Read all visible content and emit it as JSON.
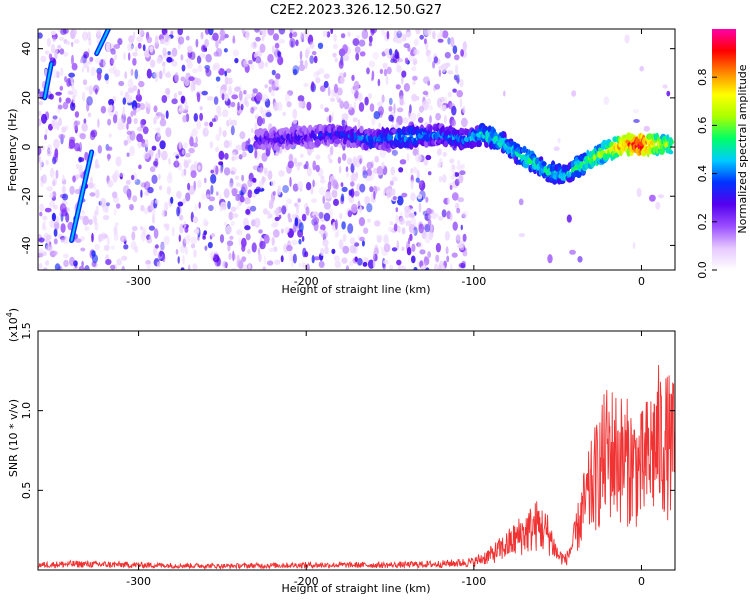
{
  "title": "C2E2.2023.326.12.50.G27",
  "chart_data": [
    {
      "type": "heatmap",
      "title": "C2E2.2023.326.12.50.G27",
      "xlabel": "Height of straight line (km)",
      "ylabel": "Frequency (Hz)",
      "xlim": [
        -360,
        20
      ],
      "ylim": [
        -50,
        48
      ],
      "x_ticks": [
        {
          "value": -300,
          "label": "-300"
        },
        {
          "value": -200,
          "label": "-200"
        },
        {
          "value": -100,
          "label": "-100"
        },
        {
          "value": 0,
          "label": "0"
        }
      ],
      "y_ticks": [
        {
          "value": -40,
          "label": "-40"
        },
        {
          "value": -20,
          "label": "-20"
        },
        {
          "value": 0,
          "label": "0"
        },
        {
          "value": 20,
          "label": "20"
        },
        {
          "value": 40,
          "label": "40"
        }
      ],
      "colorbar": {
        "label": "Normalized spectral amplitude",
        "range": [
          0,
          1
        ],
        "ticks": [
          {
            "value": 0.0,
            "label": "0.0"
          },
          {
            "value": 0.2,
            "label": "0.2"
          },
          {
            "value": 0.4,
            "label": "0.4"
          },
          {
            "value": 0.6,
            "label": "0.6"
          },
          {
            "value": 0.8,
            "label": "0.8"
          }
        ],
        "stops": [
          "#ffffff",
          "#e6c8ff",
          "#9a4dff",
          "#5500ee",
          "#0033ff",
          "#00ccff",
          "#00ff66",
          "#aaff00",
          "#ffff00",
          "#ff8800",
          "#ff0000",
          "#ff00aa"
        ]
      },
      "ridge": [
        {
          "x": -230,
          "y": 3,
          "v": 0.3
        },
        {
          "x": -200,
          "y": 4,
          "v": 0.32
        },
        {
          "x": -180,
          "y": 5,
          "v": 0.35
        },
        {
          "x": -160,
          "y": 3,
          "v": 0.4
        },
        {
          "x": -140,
          "y": 4,
          "v": 0.45
        },
        {
          "x": -120,
          "y": 5,
          "v": 0.4
        },
        {
          "x": -105,
          "y": 3,
          "v": 0.42
        },
        {
          "x": -95,
          "y": 5,
          "v": 0.5
        },
        {
          "x": -85,
          "y": 3,
          "v": 0.52
        },
        {
          "x": -75,
          "y": -2,
          "v": 0.5
        },
        {
          "x": -65,
          "y": -6,
          "v": 0.55
        },
        {
          "x": -55,
          "y": -10,
          "v": 0.5
        },
        {
          "x": -45,
          "y": -12,
          "v": 0.48
        },
        {
          "x": -38,
          "y": -8,
          "v": 0.55
        },
        {
          "x": -30,
          "y": -5,
          "v": 0.6
        },
        {
          "x": -22,
          "y": -2,
          "v": 0.65
        },
        {
          "x": -15,
          "y": 0,
          "v": 0.75
        },
        {
          "x": -8,
          "y": 1,
          "v": 0.85
        },
        {
          "x": 0,
          "y": 1,
          "v": 0.95
        },
        {
          "x": 10,
          "y": 1,
          "v": 0.7
        },
        {
          "x": 18,
          "y": 1,
          "v": 0.6
        }
      ],
      "streaks": [
        {
          "name": "",
          "points": [
            {
              "x": -340,
              "y": -38
            },
            {
              "x": -328,
              "y": -2
            }
          ]
        },
        {
          "name": "",
          "points": [
            {
              "x": -325,
              "y": 38
            },
            {
              "x": -318,
              "y": 48
            }
          ]
        },
        {
          "name": "",
          "points": [
            {
              "x": -356,
              "y": 20
            },
            {
              "x": -352,
              "y": 34
            }
          ]
        }
      ]
    },
    {
      "type": "line",
      "title": "",
      "xlabel": "Height of straight line (km)",
      "ylabel": "SNR (10 * v/v)",
      "yscale_label": "(x10",
      "yscale_exp": "4",
      "yscale_close": ")",
      "xlim": [
        -360,
        20
      ],
      "ylim": [
        0,
        1.5
      ],
      "x_ticks": [
        {
          "value": -300,
          "label": "-300"
        },
        {
          "value": -200,
          "label": "-200"
        },
        {
          "value": -100,
          "label": "-100"
        },
        {
          "value": 0,
          "label": "0"
        }
      ],
      "y_ticks": [
        {
          "value": 0.5,
          "label": "0.5"
        },
        {
          "value": 1.0,
          "label": "1.0"
        },
        {
          "value": 1.5,
          "label": "1.5"
        }
      ],
      "color": "#f03232",
      "envelope": [
        {
          "x": -360,
          "y": 0.05
        },
        {
          "x": -340,
          "y": 0.06
        },
        {
          "x": -300,
          "y": 0.05
        },
        {
          "x": -250,
          "y": 0.04
        },
        {
          "x": -200,
          "y": 0.05
        },
        {
          "x": -150,
          "y": 0.05
        },
        {
          "x": -120,
          "y": 0.06
        },
        {
          "x": -100,
          "y": 0.08
        },
        {
          "x": -90,
          "y": 0.15
        },
        {
          "x": -80,
          "y": 0.25
        },
        {
          "x": -72,
          "y": 0.35
        },
        {
          "x": -62,
          "y": 0.45
        },
        {
          "x": -55,
          "y": 0.35
        },
        {
          "x": -50,
          "y": 0.15
        },
        {
          "x": -45,
          "y": 0.1
        },
        {
          "x": -40,
          "y": 0.3
        },
        {
          "x": -35,
          "y": 0.6
        },
        {
          "x": -28,
          "y": 0.9
        },
        {
          "x": -20,
          "y": 1.2
        },
        {
          "x": -10,
          "y": 1.1
        },
        {
          "x": 0,
          "y": 1.0
        },
        {
          "x": 10,
          "y": 1.3
        },
        {
          "x": 20,
          "y": 1.2
        }
      ]
    }
  ]
}
